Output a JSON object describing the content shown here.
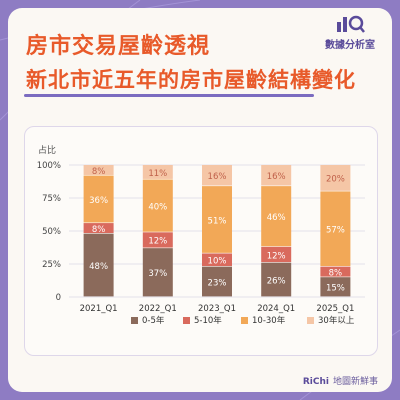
{
  "header": {
    "title": "房市交易屋齡透視",
    "subtitle": "新北市近五年的房市屋齡結構變化"
  },
  "logo": {
    "text": "數據分析室"
  },
  "footer": {
    "brand": "RiChi",
    "text": "地圖新鮮事"
  },
  "chart_data": {
    "type": "bar",
    "stacked": true,
    "percent": true,
    "ylabel": "占比",
    "ylim": [
      0,
      100
    ],
    "yticks": [
      "0",
      "25%",
      "50%",
      "75%",
      "100%"
    ],
    "categories": [
      "2021_Q1",
      "2022_Q1",
      "2023_Q1",
      "2024_Q1",
      "2025_Q1"
    ],
    "series": [
      {
        "name": "0-5年",
        "color": "#8b6a5b",
        "values": [
          48,
          37,
          23,
          26,
          15
        ],
        "labels": [
          "48%",
          "37%",
          "23%",
          "26%",
          "15%"
        ]
      },
      {
        "name": "5-10年",
        "color": "#d96a5d",
        "values": [
          8,
          12,
          10,
          12,
          8
        ],
        "labels": [
          "8%",
          "12%",
          "10%",
          "12%",
          "8%"
        ]
      },
      {
        "name": "10-30年",
        "color": "#f2a857",
        "values": [
          36,
          40,
          51,
          46,
          57
        ],
        "labels": [
          "36%",
          "40%",
          "51%",
          "46%",
          "57%"
        ]
      },
      {
        "name": "30年以上",
        "color": "#f5c6a6",
        "values": [
          8,
          11,
          16,
          16,
          20
        ],
        "labels": [
          "8%",
          "11%",
          "16%",
          "16%",
          "20%"
        ]
      }
    ],
    "grid": true,
    "legend": "bottom"
  }
}
